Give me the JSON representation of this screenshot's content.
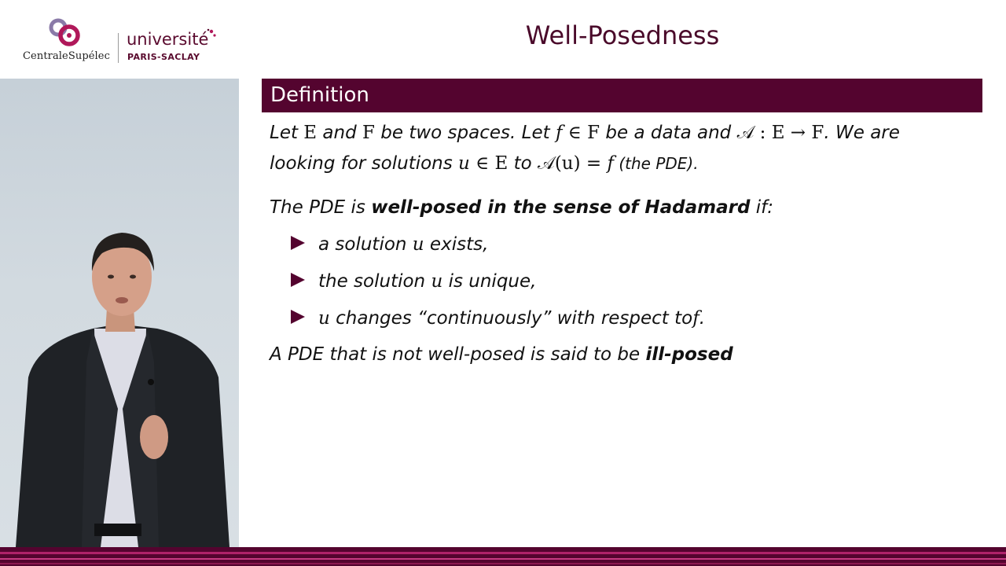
{
  "logos": {
    "centralesupelec": "CentraleSupélec",
    "universite": "université",
    "paris_saclay": "PARIS-SACLAY"
  },
  "slide": {
    "title": "Well-Posedness",
    "block_title": "Definition",
    "line1": {
      "t1": "Let ",
      "E1": "E",
      "t2": " and ",
      "F1": "F",
      "t3": " be two spaces. Let ",
      "f1": "f",
      "in1": " ∈ ",
      "F2": "F",
      "t4": " be a data and ",
      "A1": "𝒜",
      "colon": " : ",
      "E2": "E",
      "arrow": " → ",
      "F3": "F",
      "t5": ". We are"
    },
    "line2": {
      "t1": "looking for solutions ",
      "u1": "u",
      "in1": " ∈ ",
      "E1": "E",
      "t2": " to ",
      "A1": "𝒜",
      "paren": "(u) = ",
      "f1": "f",
      "t3": " (the PDE)."
    },
    "line3": {
      "t1": "The PDE is ",
      "bold": "well-posed in the sense of Hadamard",
      "t2": " if:"
    },
    "bullets": [
      {
        "pre": "a solution ",
        "var": "u",
        "post": " exists,"
      },
      {
        "pre": "the solution ",
        "var": "u",
        "post": " is unique,"
      },
      {
        "pre": "",
        "var": "u",
        "post": " changes “continuously” with respect to",
        "var2": "f",
        "end": "."
      }
    ],
    "line4": {
      "t1": "A PDE that is not well-posed is said to be ",
      "bold": "ill-posed"
    }
  },
  "colors": {
    "primary": "#54042f",
    "title": "#4a0a2a",
    "bullet": "#54042f"
  }
}
